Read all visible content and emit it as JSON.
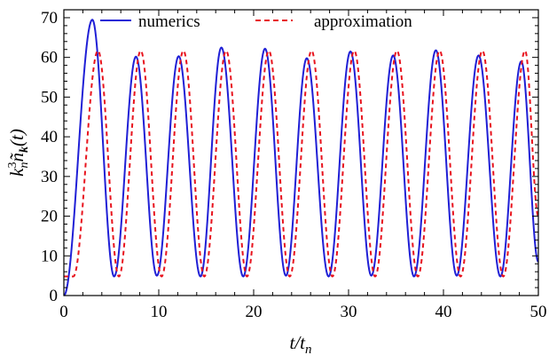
{
  "chart_data": {
    "type": "line",
    "xlabel": "t/t_n",
    "ylabel": "k_n^3 ñ_k(t)",
    "xlim": [
      0,
      50
    ],
    "ylim": [
      0,
      72
    ],
    "x_ticks": [
      0,
      10,
      20,
      30,
      40,
      50
    ],
    "y_ticks": [
      0,
      10,
      20,
      30,
      40,
      50,
      60,
      70
    ],
    "grid": false,
    "legend_position": "top",
    "colors": {
      "numerics": "#1f1fd6",
      "approximation": "#e8141e"
    },
    "series": [
      {
        "name": "numerics",
        "style": "solid",
        "peaks": [
          [
            3.0,
            69.5
          ],
          [
            7.6,
            60.2
          ],
          [
            12.1,
            60.3
          ],
          [
            16.6,
            62.5
          ],
          [
            21.2,
            62.2
          ],
          [
            25.6,
            59.8
          ],
          [
            30.2,
            61.5
          ],
          [
            34.7,
            60.5
          ],
          [
            39.2,
            61.8
          ],
          [
            43.7,
            60.5
          ],
          [
            48.2,
            59.0
          ]
        ],
        "troughs": [
          [
            0.0,
            0.0
          ],
          [
            5.3,
            4.8
          ],
          [
            9.8,
            5.0
          ],
          [
            14.4,
            4.8
          ],
          [
            18.9,
            4.8
          ],
          [
            23.4,
            5.0
          ],
          [
            27.9,
            4.8
          ],
          [
            32.4,
            5.0
          ],
          [
            36.9,
            4.8
          ],
          [
            41.4,
            5.0
          ],
          [
            46.0,
            4.8
          ]
        ],
        "end": [
          50,
          8.5
        ]
      },
      {
        "name": "approximation",
        "style": "dashed",
        "peaks": [
          [
            3.6,
            61.7
          ],
          [
            8.1,
            61.7
          ],
          [
            12.6,
            61.7
          ],
          [
            17.1,
            61.7
          ],
          [
            21.6,
            61.7
          ],
          [
            26.1,
            61.7
          ],
          [
            30.6,
            61.7
          ],
          [
            35.1,
            61.7
          ],
          [
            39.6,
            61.7
          ],
          [
            44.1,
            61.7
          ],
          [
            48.6,
            61.7
          ]
        ],
        "troughs": [
          [
            1.0,
            4.8
          ],
          [
            5.8,
            4.8
          ],
          [
            10.3,
            4.8
          ],
          [
            14.8,
            4.8
          ],
          [
            19.3,
            4.8
          ],
          [
            23.8,
            4.8
          ],
          [
            28.3,
            4.8
          ],
          [
            32.8,
            4.8
          ],
          [
            37.3,
            4.8
          ],
          [
            41.8,
            4.8
          ],
          [
            46.3,
            4.8
          ]
        ],
        "end": [
          50,
          20.0
        ]
      }
    ]
  }
}
